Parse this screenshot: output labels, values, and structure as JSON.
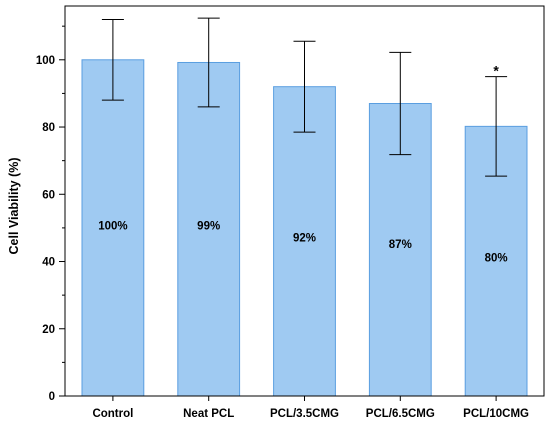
{
  "chart_data": {
    "type": "bar",
    "categories": [
      "Control",
      "Neat PCL",
      "PCL/3.5CMG",
      "PCL/6.5CMG",
      "PCL/10CMG"
    ],
    "values": [
      100,
      99.2,
      92,
      87,
      80.2
    ],
    "errors": [
      12,
      13.2,
      13.5,
      15.2,
      14.8
    ],
    "data_labels": [
      "100%",
      "99%",
      "92%",
      "87%",
      "80%"
    ],
    "annotations": [
      "",
      "",
      "",
      "",
      "*"
    ],
    "title": "",
    "xlabel": "",
    "ylabel": "Cell Viability (%)",
    "ylim": [
      0,
      116
    ],
    "yticks": [
      0,
      20,
      40,
      60,
      80,
      100
    ],
    "yticklabels": [
      "0",
      "20",
      "40",
      "60",
      "80",
      "100"
    ],
    "bar_color": "#9fcaf2",
    "bar_edge_color": "#5a9ee0",
    "grid": false,
    "legend": "none"
  }
}
